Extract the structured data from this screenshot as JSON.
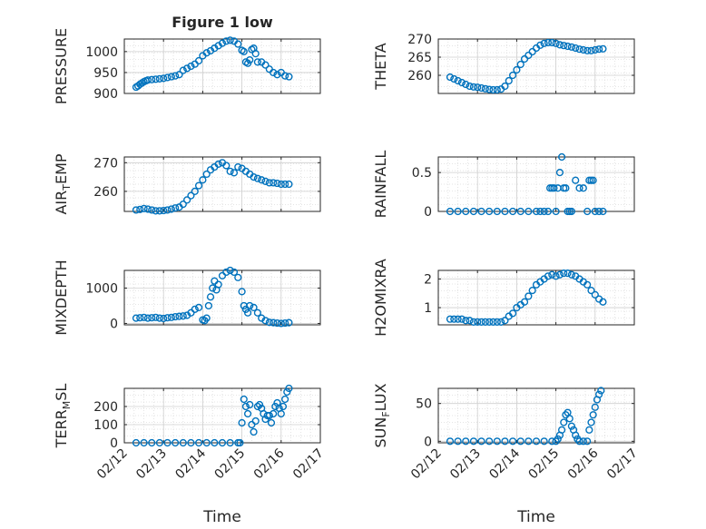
{
  "figure": {
    "title": "Figure 1 low",
    "marker_color": "#0072BD"
  },
  "chart_data": [
    {
      "type": "scatter",
      "ylabel": "PRESSURE",
      "xlabel": "",
      "xlim": [
        0,
        5
      ],
      "ylim": [
        900,
        1030
      ],
      "yticks": [
        900,
        950,
        1000
      ],
      "xticks": [
        0,
        1,
        2,
        3,
        4,
        5
      ],
      "x": [
        0.3,
        0.35,
        0.4,
        0.45,
        0.5,
        0.55,
        0.6,
        0.7,
        0.8,
        0.9,
        1.0,
        1.1,
        1.2,
        1.3,
        1.4,
        1.5,
        1.6,
        1.7,
        1.8,
        1.9,
        2.0,
        2.1,
        2.2,
        2.3,
        2.4,
        2.5,
        2.6,
        2.7,
        2.8,
        2.9,
        3.0,
        3.05,
        3.1,
        3.15,
        3.2,
        3.25,
        3.3,
        3.35,
        3.4,
        3.5,
        3.6,
        3.7,
        3.8,
        3.9,
        4.0,
        4.1,
        4.2
      ],
      "y": [
        915,
        918,
        922,
        925,
        928,
        930,
        932,
        933,
        934,
        935,
        936,
        938,
        940,
        942,
        945,
        955,
        960,
        965,
        970,
        978,
        990,
        997,
        1002,
        1008,
        1014,
        1020,
        1025,
        1027,
        1025,
        1018,
        1003,
        1000,
        975,
        972,
        980,
        1005,
        1008,
        995,
        975,
        975,
        968,
        958,
        950,
        945,
        950,
        942,
        940
      ]
    },
    {
      "type": "scatter",
      "ylabel": "THETA",
      "xlabel": "",
      "xlim": [
        0,
        5
      ],
      "ylim": [
        255,
        270
      ],
      "yticks": [
        260,
        265,
        270
      ],
      "xticks": [
        0,
        1,
        2,
        3,
        4,
        5
      ],
      "x": [
        0.3,
        0.4,
        0.5,
        0.6,
        0.7,
        0.8,
        0.9,
        1.0,
        1.1,
        1.2,
        1.3,
        1.4,
        1.5,
        1.6,
        1.7,
        1.8,
        1.9,
        2.0,
        2.1,
        2.2,
        2.3,
        2.4,
        2.5,
        2.6,
        2.7,
        2.8,
        2.9,
        3.0,
        3.1,
        3.2,
        3.3,
        3.4,
        3.5,
        3.6,
        3.7,
        3.8,
        3.9,
        4.0,
        4.1,
        4.2
      ],
      "y": [
        259.5,
        259,
        258.5,
        258,
        257.5,
        257,
        256.8,
        256.7,
        256.5,
        256.3,
        256.1,
        256,
        256,
        256.2,
        257,
        258.5,
        260,
        261.5,
        263,
        264.5,
        265.5,
        266.5,
        267.5,
        268.3,
        268.8,
        269,
        269,
        268.8,
        268.4,
        268.2,
        268,
        267.8,
        267.5,
        267.2,
        267,
        266.8,
        266.8,
        267,
        267.2,
        267.3
      ]
    },
    {
      "type": "scatter",
      "ylabel": "AIR_TEMP",
      "xlabel": "",
      "xlim": [
        0,
        5
      ],
      "ylim": [
        253,
        272
      ],
      "yticks": [
        260,
        270
      ],
      "xticks": [
        0,
        1,
        2,
        3,
        4,
        5
      ],
      "x": [
        0.3,
        0.4,
        0.5,
        0.6,
        0.7,
        0.8,
        0.9,
        1.0,
        1.1,
        1.2,
        1.3,
        1.4,
        1.5,
        1.6,
        1.7,
        1.8,
        1.9,
        2.0,
        2.1,
        2.2,
        2.3,
        2.4,
        2.5,
        2.6,
        2.7,
        2.8,
        2.9,
        3.0,
        3.1,
        3.2,
        3.3,
        3.4,
        3.5,
        3.6,
        3.7,
        3.8,
        3.9,
        4.0,
        4.1,
        4.2
      ],
      "y": [
        253.5,
        253.7,
        254,
        253.8,
        253.5,
        253.2,
        253.2,
        253.3,
        253.5,
        253.8,
        254.2,
        254.5,
        255.5,
        257,
        258.5,
        260,
        262,
        264,
        266,
        267.5,
        268.5,
        269.5,
        270,
        269,
        267,
        266.5,
        268.5,
        268,
        267,
        266,
        265,
        264.5,
        264,
        263.5,
        263,
        263,
        262.8,
        262.5,
        262.5,
        262.5
      ]
    },
    {
      "type": "scatter",
      "ylabel": "RAINFALL",
      "xlabel": "",
      "xlim": [
        0,
        5
      ],
      "ylim": [
        0,
        0.7
      ],
      "yticks": [
        0,
        0.5
      ],
      "xticks": [
        0,
        1,
        2,
        3,
        4,
        5
      ],
      "x": [
        0.3,
        0.5,
        0.7,
        0.9,
        1.1,
        1.3,
        1.5,
        1.7,
        1.9,
        2.1,
        2.3,
        2.5,
        2.6,
        2.7,
        2.8,
        2.85,
        2.9,
        2.95,
        3.0,
        3.05,
        3.1,
        3.15,
        3.2,
        3.25,
        3.3,
        3.35,
        3.4,
        3.5,
        3.6,
        3.7,
        3.8,
        3.85,
        3.9,
        3.95,
        4.0,
        4.1,
        4.2
      ],
      "y": [
        0,
        0,
        0,
        0,
        0,
        0,
        0,
        0,
        0,
        0,
        0,
        0,
        0,
        0,
        0,
        0.3,
        0.3,
        0.3,
        0,
        0.3,
        0.5,
        0.7,
        0.3,
        0.3,
        0,
        0,
        0,
        0.4,
        0.3,
        0.3,
        0,
        0.4,
        0.4,
        0.4,
        0,
        0,
        0
      ]
    },
    {
      "type": "scatter",
      "ylabel": "MIXDEPTH",
      "xlabel": "",
      "xlim": [
        0,
        5
      ],
      "ylim": [
        -40,
        1500
      ],
      "yticks": [
        0,
        1000
      ],
      "xticks": [
        0,
        1,
        2,
        3,
        4,
        5
      ],
      "x": [
        0.3,
        0.4,
        0.5,
        0.6,
        0.7,
        0.8,
        0.9,
        1.0,
        1.1,
        1.2,
        1.3,
        1.4,
        1.5,
        1.6,
        1.7,
        1.8,
        1.9,
        2.0,
        2.05,
        2.1,
        2.15,
        2.2,
        2.25,
        2.3,
        2.35,
        2.4,
        2.5,
        2.6,
        2.7,
        2.8,
        2.9,
        3.0,
        3.05,
        3.1,
        3.15,
        3.2,
        3.3,
        3.4,
        3.5,
        3.6,
        3.7,
        3.8,
        3.9,
        4.0,
        4.1,
        4.2
      ],
      "y": [
        150,
        160,
        170,
        150,
        160,
        170,
        150,
        140,
        160,
        170,
        190,
        200,
        210,
        230,
        300,
        400,
        450,
        100,
        80,
        150,
        500,
        750,
        1000,
        1200,
        950,
        1100,
        1350,
        1450,
        1500,
        1450,
        1300,
        900,
        500,
        400,
        300,
        500,
        450,
        300,
        150,
        80,
        30,
        20,
        10,
        0,
        10,
        20
      ]
    },
    {
      "type": "scatter",
      "ylabel": "H2OMIXRA",
      "xlabel": "",
      "xlim": [
        0,
        5
      ],
      "ylim": [
        0.4,
        2.3
      ],
      "yticks": [
        1,
        2
      ],
      "xticks": [
        0,
        1,
        2,
        3,
        4,
        5
      ],
      "x": [
        0.3,
        0.4,
        0.5,
        0.6,
        0.7,
        0.8,
        0.9,
        1.0,
        1.1,
        1.2,
        1.3,
        1.4,
        1.5,
        1.6,
        1.7,
        1.8,
        1.9,
        2.0,
        2.1,
        2.2,
        2.3,
        2.4,
        2.5,
        2.6,
        2.7,
        2.8,
        2.9,
        3.0,
        3.1,
        3.2,
        3.3,
        3.4,
        3.5,
        3.6,
        3.7,
        3.8,
        3.9,
        4.0,
        4.1,
        4.2
      ],
      "y": [
        0.6,
        0.6,
        0.6,
        0.6,
        0.55,
        0.55,
        0.5,
        0.5,
        0.5,
        0.5,
        0.5,
        0.5,
        0.5,
        0.5,
        0.55,
        0.7,
        0.8,
        1.0,
        1.1,
        1.2,
        1.4,
        1.6,
        1.8,
        1.9,
        2.0,
        2.1,
        2.15,
        2.1,
        2.15,
        2.2,
        2.2,
        2.15,
        2.1,
        2.0,
        1.9,
        1.8,
        1.6,
        1.45,
        1.3,
        1.2
      ]
    },
    {
      "type": "scatter",
      "ylabel": "TERR_MSL",
      "xlabel": "Time",
      "xlim": [
        0,
        5
      ],
      "ylim": [
        0,
        300
      ],
      "yticks": [
        0,
        100,
        200
      ],
      "xticks": [
        0,
        1,
        2,
        3,
        4,
        5
      ],
      "xticklabels": [
        "02/12",
        "02/13",
        "02/14",
        "02/15",
        "02/16",
        "02/17"
      ],
      "x": [
        0.3,
        0.5,
        0.7,
        0.9,
        1.1,
        1.3,
        1.5,
        1.7,
        1.9,
        2.1,
        2.3,
        2.5,
        2.7,
        2.9,
        2.95,
        3.0,
        3.05,
        3.1,
        3.15,
        3.2,
        3.25,
        3.3,
        3.35,
        3.4,
        3.45,
        3.5,
        3.55,
        3.6,
        3.65,
        3.7,
        3.75,
        3.8,
        3.85,
        3.9,
        3.95,
        4.0,
        4.05,
        4.1,
        4.15,
        4.2
      ],
      "y": [
        0,
        0,
        0,
        0,
        0,
        0,
        0,
        0,
        0,
        0,
        0,
        0,
        0,
        0,
        0,
        110,
        240,
        200,
        160,
        210,
        100,
        60,
        120,
        200,
        210,
        190,
        160,
        130,
        150,
        150,
        110,
        160,
        200,
        220,
        190,
        160,
        200,
        240,
        280,
        300
      ]
    },
    {
      "type": "scatter",
      "ylabel": "SUN_FLUX",
      "xlabel": "Time",
      "xlim": [
        0,
        5
      ],
      "ylim": [
        -2,
        70
      ],
      "yticks": [
        0,
        50
      ],
      "xticks": [
        0,
        1,
        2,
        3,
        4,
        5
      ],
      "xticklabels": [
        "02/12",
        "02/13",
        "02/14",
        "02/15",
        "02/16",
        "02/17"
      ],
      "x": [
        0.3,
        0.5,
        0.7,
        0.9,
        1.1,
        1.3,
        1.5,
        1.7,
        1.9,
        2.1,
        2.3,
        2.5,
        2.7,
        2.9,
        3.0,
        3.05,
        3.1,
        3.15,
        3.2,
        3.25,
        3.3,
        3.35,
        3.4,
        3.45,
        3.5,
        3.55,
        3.6,
        3.7,
        3.8,
        3.85,
        3.9,
        3.95,
        4.0,
        4.05,
        4.1,
        4.15
      ],
      "y": [
        0,
        0,
        0,
        0,
        0,
        0,
        0,
        0,
        0,
        0,
        0,
        0,
        0,
        0,
        0,
        3,
        8,
        15,
        25,
        35,
        38,
        30,
        20,
        15,
        8,
        3,
        0,
        0,
        0,
        15,
        25,
        35,
        45,
        55,
        62,
        67
      ]
    }
  ]
}
